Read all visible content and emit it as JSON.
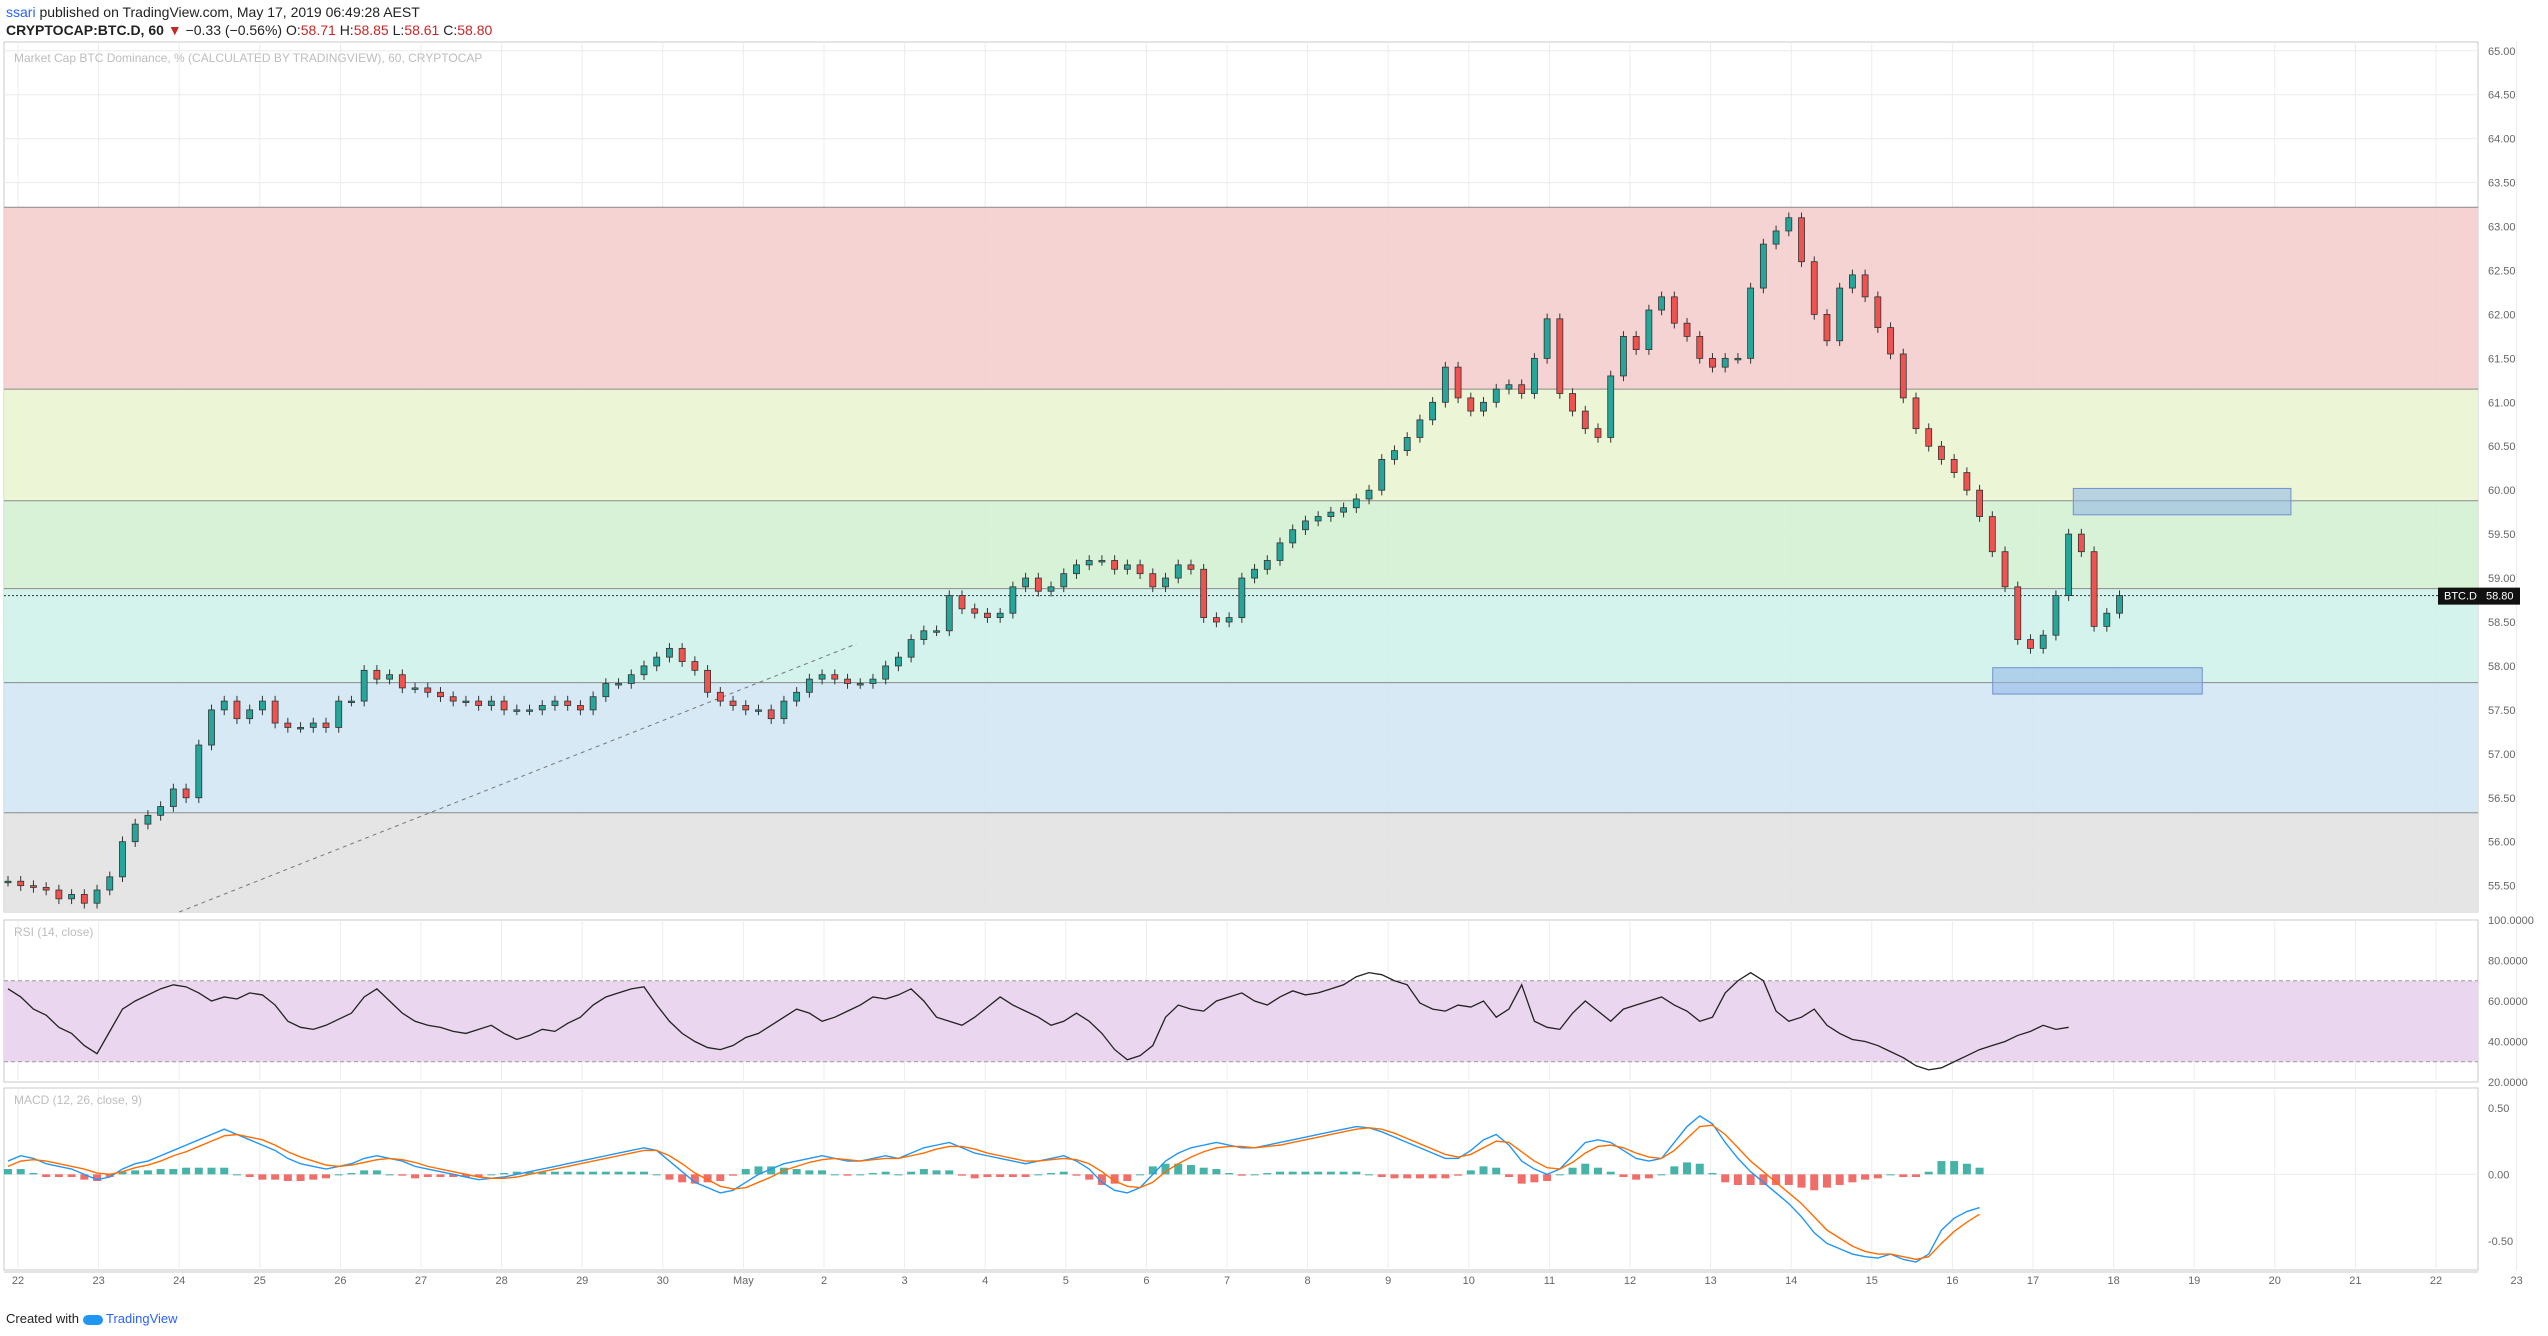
{
  "header": {
    "user": "ssari",
    "published": "published on TradingView.com, May 17, 2019 06:49:28 AEST",
    "symbol": "CRYPTOCAP:BTC.D, 60",
    "change_arrow": "▼",
    "change": "−0.33 (−0.56%)",
    "o_label": "O:",
    "o": "58.71",
    "h_label": "H:",
    "h": "58.85",
    "l_label": "L:",
    "l": "58.61",
    "c_label": "C:",
    "c": "58.80"
  },
  "footer": {
    "created_with": "Created with",
    "brand": "TradingView"
  },
  "colors": {
    "up": "#26a69a",
    "down": "#ef5350",
    "candle": "#333333",
    "zone_red": "#f4cfcf",
    "zone_yellow": "#eaf5d4",
    "zone_green": "#d4f1d4",
    "zone_teal": "#d0f2ea",
    "zone_blue": "#d2e7f4",
    "zone_gray": "#e3e3e3",
    "rsi_band": "#ead6ee",
    "macd_line": "#2196f3",
    "signal_line": "#ff6d00"
  },
  "chart_data": [
    {
      "type": "candlestick",
      "title": "Market Cap BTC Dominance, % (CALCULATED BY TRADINGVIEW), 60, CRYPTOCAP",
      "symbol_tag": "BTC.D",
      "last_price": "58.80",
      "ylim": [
        55.2,
        65.1
      ],
      "y_ticks": [
        "65.00",
        "64.50",
        "64.00",
        "63.50",
        "63.00",
        "62.50",
        "62.00",
        "61.50",
        "61.00",
        "60.50",
        "60.00",
        "59.50",
        "59.00",
        "58.50",
        "58.00",
        "57.50",
        "57.00",
        "56.50",
        "56.00",
        "55.50"
      ],
      "x_ticks": [
        "22",
        "23",
        "24",
        "25",
        "26",
        "27",
        "28",
        "29",
        "30",
        "May",
        "2",
        "3",
        "4",
        "5",
        "6",
        "7",
        "8",
        "9",
        "10",
        "11",
        "12",
        "13",
        "14",
        "15",
        "16",
        "17",
        "18",
        "19",
        "20",
        "21",
        "22",
        "23"
      ],
      "zones": [
        {
          "from": 61.15,
          "to": 63.22,
          "color": "zone_red"
        },
        {
          "from": 59.88,
          "to": 61.15,
          "color": "zone_yellow"
        },
        {
          "from": 58.88,
          "to": 59.88,
          "color": "zone_green"
        },
        {
          "from": 57.81,
          "to": 58.88,
          "color": "zone_teal"
        },
        {
          "from": 56.33,
          "to": 57.81,
          "color": "zone_blue"
        },
        {
          "from": 55.2,
          "to": 56.33,
          "color": "zone_gray"
        }
      ],
      "rectangles": [
        {
          "day_from": 16.5,
          "day_to": 19.2,
          "from": 59.72,
          "to": 60.02
        },
        {
          "day_from": 15.5,
          "day_to": 18.1,
          "from": 57.68,
          "to": 57.98
        }
      ],
      "trendline": {
        "day_from": 23.0,
        "from": 55.2,
        "day_to": 31.4,
        "to": 58.25
      },
      "closes": [
        55.55,
        55.5,
        55.48,
        55.45,
        55.35,
        55.4,
        55.3,
        55.45,
        55.6,
        56.0,
        56.2,
        56.3,
        56.4,
        56.6,
        56.5,
        57.1,
        57.5,
        57.6,
        57.4,
        57.5,
        57.6,
        57.35,
        57.3,
        57.3,
        57.35,
        57.3,
        57.6,
        57.6,
        57.95,
        57.85,
        57.9,
        57.75,
        57.75,
        57.7,
        57.65,
        57.6,
        57.6,
        57.55,
        57.6,
        57.5,
        57.5,
        57.5,
        57.55,
        57.6,
        57.55,
        57.5,
        57.65,
        57.8,
        57.8,
        57.9,
        58.0,
        58.1,
        58.2,
        58.05,
        57.95,
        57.7,
        57.6,
        57.55,
        57.5,
        57.5,
        57.4,
        57.6,
        57.7,
        57.85,
        57.9,
        57.85,
        57.8,
        57.8,
        57.85,
        58.0,
        58.1,
        58.3,
        58.4,
        58.4,
        58.8,
        58.65,
        58.6,
        58.55,
        58.6,
        58.9,
        59.0,
        58.85,
        58.9,
        59.05,
        59.15,
        59.2,
        59.2,
        59.1,
        59.15,
        59.05,
        58.9,
        59.0,
        59.15,
        59.1,
        58.55,
        58.5,
        58.55,
        59.0,
        59.1,
        59.2,
        59.4,
        59.55,
        59.65,
        59.7,
        59.75,
        59.8,
        59.9,
        60.0,
        60.35,
        60.45,
        60.6,
        60.8,
        61.0,
        61.4,
        61.05,
        60.9,
        61.0,
        61.15,
        61.2,
        61.1,
        61.5,
        61.95,
        61.1,
        60.9,
        60.7,
        60.6,
        61.3,
        61.75,
        61.6,
        62.05,
        62.2,
        61.9,
        61.75,
        61.5,
        61.4,
        61.5,
        61.5,
        62.3,
        62.8,
        62.95,
        63.1,
        62.6,
        62.0,
        61.7,
        62.3,
        62.45,
        62.2,
        61.85,
        61.55,
        61.05,
        60.7,
        60.5,
        60.35,
        60.2,
        60.0,
        59.7,
        59.3,
        58.9,
        58.3,
        58.2,
        58.35,
        58.8,
        59.5,
        59.3,
        58.45,
        58.6,
        58.8
      ]
    },
    {
      "type": "line",
      "title": "RSI (14, close)",
      "ylim": [
        20,
        100
      ],
      "band": [
        30,
        70
      ],
      "y_ticks": [
        "100.0000",
        "80.0000",
        "60.0000",
        "40.0000",
        "20.0000"
      ],
      "values": [
        66,
        62,
        56,
        53,
        47,
        44,
        38,
        34,
        45,
        56,
        60,
        63,
        66,
        68,
        67,
        64,
        60,
        62,
        61,
        64,
        63,
        58,
        50,
        47,
        46,
        48,
        51,
        54,
        62,
        66,
        60,
        54,
        50,
        48,
        47,
        45,
        44,
        46,
        48,
        44,
        41,
        43,
        46,
        45,
        49,
        52,
        58,
        62,
        64,
        66,
        67,
        58,
        50,
        44,
        40,
        37,
        36,
        38,
        42,
        44,
        48,
        52,
        56,
        54,
        50,
        52,
        55,
        58,
        62,
        61,
        63,
        66,
        60,
        52,
        50,
        48,
        52,
        57,
        62,
        58,
        55,
        52,
        48,
        50,
        54,
        50,
        44,
        36,
        31,
        33,
        38,
        52,
        58,
        56,
        55,
        60,
        62,
        64,
        60,
        58,
        62,
        65,
        63,
        64,
        66,
        68,
        72,
        74,
        73,
        70,
        68,
        59,
        56,
        55,
        58,
        57,
        60,
        52,
        56,
        68,
        50,
        47,
        46,
        54,
        60,
        55,
        50,
        56,
        58,
        60,
        62,
        58,
        55,
        50,
        52,
        64,
        70,
        74,
        70,
        55,
        50,
        52,
        56,
        48,
        44,
        41,
        40,
        38,
        35,
        32,
        28,
        26,
        27,
        30,
        33,
        36,
        38,
        40,
        43,
        45,
        48,
        46,
        47
      ]
    },
    {
      "type": "line",
      "title": "MACD (12, 26, close, 9)",
      "ylim": [
        -0.72,
        0.65
      ],
      "y_ticks": [
        "0.50",
        "0.00",
        "-0.50"
      ],
      "series": [
        {
          "name": "MACD",
          "values": [
            0.1,
            0.14,
            0.12,
            0.08,
            0.06,
            0.04,
            0.0,
            -0.04,
            -0.02,
            0.04,
            0.08,
            0.1,
            0.14,
            0.18,
            0.22,
            0.26,
            0.3,
            0.34,
            0.3,
            0.26,
            0.22,
            0.18,
            0.12,
            0.08,
            0.06,
            0.04,
            0.06,
            0.08,
            0.12,
            0.14,
            0.12,
            0.1,
            0.06,
            0.04,
            0.02,
            0.0,
            -0.02,
            -0.04,
            -0.03,
            -0.02,
            0.0,
            0.02,
            0.04,
            0.06,
            0.08,
            0.1,
            0.12,
            0.14,
            0.16,
            0.18,
            0.2,
            0.18,
            0.1,
            0.02,
            -0.06,
            -0.1,
            -0.14,
            -0.12,
            -0.06,
            0.0,
            0.04,
            0.08,
            0.1,
            0.12,
            0.14,
            0.12,
            0.1,
            0.1,
            0.12,
            0.14,
            0.12,
            0.16,
            0.2,
            0.22,
            0.24,
            0.2,
            0.16,
            0.14,
            0.12,
            0.1,
            0.08,
            0.1,
            0.12,
            0.14,
            0.1,
            0.04,
            -0.06,
            -0.12,
            -0.14,
            -0.1,
            0.0,
            0.1,
            0.16,
            0.2,
            0.22,
            0.24,
            0.22,
            0.2,
            0.2,
            0.22,
            0.24,
            0.26,
            0.28,
            0.3,
            0.32,
            0.34,
            0.36,
            0.35,
            0.32,
            0.28,
            0.24,
            0.2,
            0.16,
            0.12,
            0.12,
            0.18,
            0.26,
            0.3,
            0.22,
            0.1,
            0.04,
            0.0,
            0.04,
            0.14,
            0.24,
            0.26,
            0.24,
            0.18,
            0.12,
            0.1,
            0.12,
            0.24,
            0.36,
            0.44,
            0.38,
            0.24,
            0.12,
            0.02,
            -0.06,
            -0.14,
            -0.22,
            -0.32,
            -0.44,
            -0.52,
            -0.56,
            -0.6,
            -0.62,
            -0.63,
            -0.6,
            -0.64,
            -0.66,
            -0.6,
            -0.42,
            -0.33,
            -0.28,
            -0.25
          ]
        },
        {
          "name": "Signal",
          "values": [
            0.06,
            0.1,
            0.11,
            0.1,
            0.08,
            0.06,
            0.04,
            0.01,
            0.0,
            0.02,
            0.05,
            0.07,
            0.1,
            0.14,
            0.17,
            0.21,
            0.25,
            0.29,
            0.3,
            0.28,
            0.26,
            0.22,
            0.17,
            0.13,
            0.1,
            0.07,
            0.06,
            0.07,
            0.09,
            0.11,
            0.12,
            0.11,
            0.09,
            0.06,
            0.04,
            0.02,
            0.0,
            -0.02,
            -0.03,
            -0.03,
            -0.02,
            0.0,
            0.02,
            0.04,
            0.06,
            0.08,
            0.1,
            0.12,
            0.14,
            0.16,
            0.18,
            0.18,
            0.14,
            0.08,
            0.01,
            -0.04,
            -0.09,
            -0.11,
            -0.1,
            -0.06,
            -0.02,
            0.03,
            0.06,
            0.09,
            0.11,
            0.12,
            0.11,
            0.1,
            0.11,
            0.12,
            0.12,
            0.14,
            0.16,
            0.19,
            0.21,
            0.21,
            0.19,
            0.16,
            0.14,
            0.12,
            0.1,
            0.1,
            0.11,
            0.12,
            0.11,
            0.08,
            0.02,
            -0.05,
            -0.09,
            -0.1,
            -0.06,
            0.02,
            0.08,
            0.13,
            0.17,
            0.2,
            0.21,
            0.21,
            0.2,
            0.21,
            0.22,
            0.24,
            0.26,
            0.28,
            0.3,
            0.32,
            0.34,
            0.35,
            0.34,
            0.31,
            0.27,
            0.23,
            0.19,
            0.15,
            0.13,
            0.15,
            0.2,
            0.25,
            0.24,
            0.17,
            0.1,
            0.05,
            0.04,
            0.09,
            0.16,
            0.21,
            0.22,
            0.2,
            0.16,
            0.13,
            0.12,
            0.18,
            0.27,
            0.36,
            0.37,
            0.3,
            0.2,
            0.1,
            0.02,
            -0.06,
            -0.14,
            -0.22,
            -0.32,
            -0.42,
            -0.48,
            -0.54,
            -0.58,
            -0.6,
            -0.6,
            -0.62,
            -0.64,
            -0.62,
            -0.52,
            -0.43,
            -0.36,
            -0.3
          ]
        }
      ]
    }
  ]
}
